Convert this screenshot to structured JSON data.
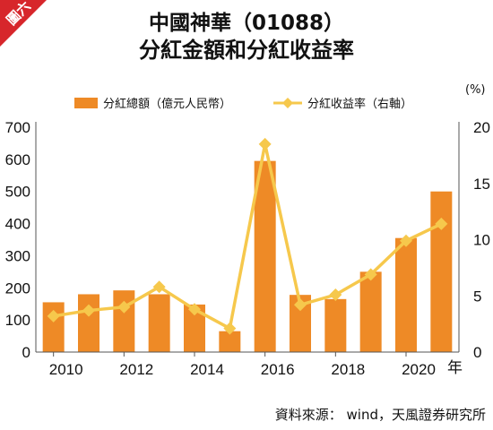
{
  "badge": {
    "text": "圖六",
    "color": "#d7262b"
  },
  "title": {
    "line1": "中國神華（01088）",
    "line2": "分紅金額和分紅收益率"
  },
  "source": "資料來源：  wind，天風證券研究所",
  "chart_data": {
    "type": "bar+line",
    "title": "中國神華（01088） 分紅金額和分紅收益率",
    "categories": [
      "2010",
      "2011",
      "2012",
      "2013",
      "2014",
      "2015",
      "2016",
      "2017",
      "2018",
      "2019",
      "2020",
      "2021"
    ],
    "x_tick_labels": [
      "2010",
      "2012",
      "2014",
      "2016",
      "2018",
      "2020"
    ],
    "x_unit": "年",
    "left_axis": {
      "ylim": [
        0,
        700
      ],
      "ticks": [
        0,
        100,
        200,
        300,
        400,
        500,
        600,
        700
      ]
    },
    "right_axis": {
      "unit": "(%)",
      "ylim": [
        0,
        20
      ],
      "ticks": [
        0,
        5,
        10,
        15,
        20
      ]
    },
    "series": [
      {
        "name": "分紅總額（億元人民幣）",
        "type": "bar",
        "axis": "left",
        "color": "#ee8a26",
        "values": [
          155,
          180,
          192,
          180,
          148,
          65,
          595,
          178,
          165,
          250,
          355,
          500
        ]
      },
      {
        "name": "分紅收益率（右軸）",
        "type": "line",
        "axis": "right",
        "color": "#f6c84c",
        "values": [
          3.2,
          3.7,
          4.0,
          5.8,
          3.8,
          2.1,
          18.5,
          4.2,
          5.1,
          6.9,
          9.9,
          11.4
        ]
      }
    ],
    "legend_position": "top",
    "grid": false
  }
}
